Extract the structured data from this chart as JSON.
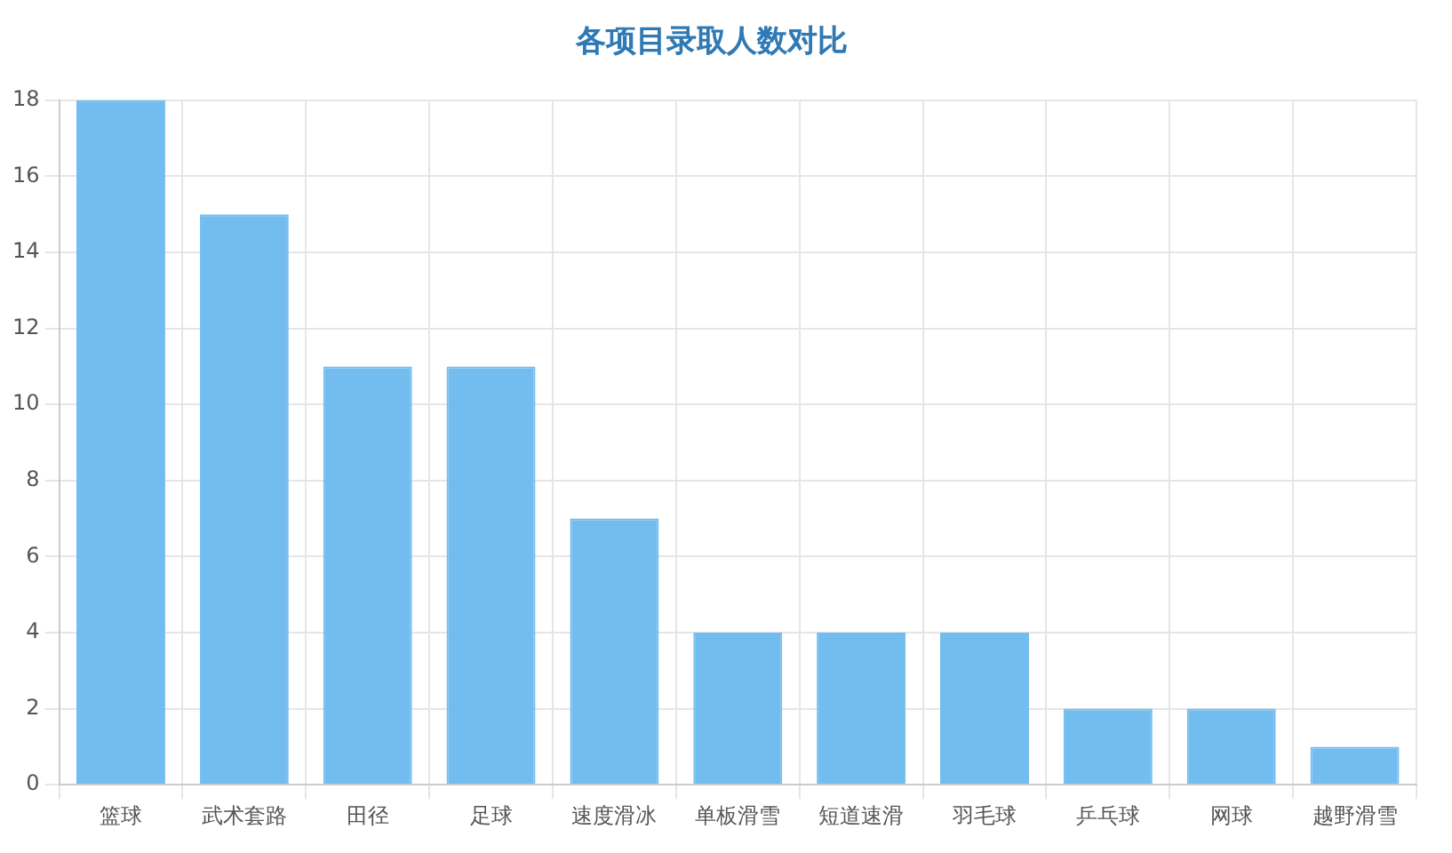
{
  "chart_data": {
    "type": "bar",
    "title": "各项目录取人数对比",
    "categories": [
      "篮球",
      "武术套路",
      "田径",
      "足球",
      "速度滑冰",
      "单板滑雪",
      "短道速滑",
      "羽毛球",
      "乒乓球",
      "网球",
      "越野滑雪"
    ],
    "values": [
      18,
      15,
      11,
      11,
      7,
      4,
      4,
      4,
      2,
      2,
      1
    ],
    "color": "#72bcf0",
    "ylim": [
      0,
      18
    ],
    "yticks": [
      0,
      2,
      4,
      6,
      8,
      10,
      12,
      14,
      16,
      18
    ],
    "grid": true,
    "legend": false
  }
}
